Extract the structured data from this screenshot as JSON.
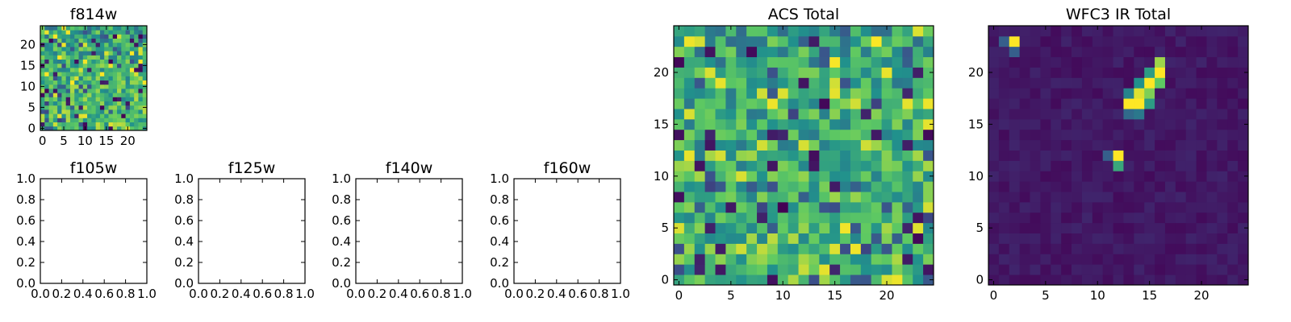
{
  "figure": {
    "background": "#ffffff"
  },
  "colormap": [
    "#440154",
    "#3b528b",
    "#21918c",
    "#5ec962",
    "#fde725"
  ],
  "chart_data": [
    {
      "id": "f814w",
      "type": "heatmap",
      "title": "f814w",
      "data_seed": 11,
      "pattern": "noise_bright_bottom",
      "grid_size": 25,
      "xlim": [
        -0.5,
        24.5
      ],
      "ylim": [
        -0.5,
        24.5
      ],
      "xticks": [
        0,
        5,
        10,
        15,
        20
      ],
      "yticks": [
        0,
        5,
        10,
        15,
        20
      ]
    },
    {
      "id": "f105w",
      "type": "empty",
      "title": "f105w",
      "xticks": [
        "0.0",
        "0.2",
        "0.4",
        "0.6",
        "0.8",
        "1.0"
      ],
      "yticks": [
        "0.0",
        "0.2",
        "0.4",
        "0.6",
        "0.8",
        "1.0"
      ]
    },
    {
      "id": "f125w",
      "type": "empty",
      "title": "f125w",
      "xticks": [
        "0.0",
        "0.2",
        "0.4",
        "0.6",
        "0.8",
        "1.0"
      ],
      "yticks": [
        "0.0",
        "0.2",
        "0.4",
        "0.6",
        "0.8",
        "1.0"
      ]
    },
    {
      "id": "f140w",
      "type": "empty",
      "title": "f140w",
      "xticks": [
        "0.0",
        "0.2",
        "0.4",
        "0.6",
        "0.8",
        "1.0"
      ],
      "yticks": [
        "0.0",
        "0.2",
        "0.4",
        "0.6",
        "0.8",
        "1.0"
      ]
    },
    {
      "id": "f160w",
      "type": "empty",
      "title": "f160w",
      "xticks": [
        "0.0",
        "0.2",
        "0.4",
        "0.6",
        "0.8",
        "1.0"
      ],
      "yticks": [
        "0.0",
        "0.2",
        "0.4",
        "0.6",
        "0.8",
        "1.0"
      ]
    },
    {
      "id": "acs-total",
      "type": "heatmap",
      "title": "ACS Total",
      "data_seed": 23,
      "pattern": "noise_bright_bottom",
      "grid_size": 25,
      "xlim": [
        -0.5,
        24.5
      ],
      "ylim": [
        -0.5,
        24.5
      ],
      "xticks": [
        0,
        5,
        10,
        15,
        20
      ],
      "yticks": [
        0,
        5,
        10,
        15,
        20
      ]
    },
    {
      "id": "wfc3-ir-total",
      "type": "heatmap",
      "title": "WFC3 IR Total",
      "data_seed": 37,
      "pattern": "dark_with_sources",
      "grid_size": 25,
      "bright_pixels": [
        {
          "x": 2,
          "y": 23,
          "v": 1.0
        },
        {
          "x": 1,
          "y": 23,
          "v": 0.3
        },
        {
          "x": 2,
          "y": 22,
          "v": 0.3
        },
        {
          "x": 16,
          "y": 21,
          "v": 0.85
        },
        {
          "x": 16,
          "y": 20,
          "v": 1.0
        },
        {
          "x": 15,
          "y": 20,
          "v": 0.55
        },
        {
          "x": 15,
          "y": 19,
          "v": 1.0
        },
        {
          "x": 16,
          "y": 19,
          "v": 0.75
        },
        {
          "x": 14,
          "y": 19,
          "v": 0.5
        },
        {
          "x": 14,
          "y": 18,
          "v": 0.95
        },
        {
          "x": 15,
          "y": 18,
          "v": 0.8
        },
        {
          "x": 13,
          "y": 18,
          "v": 0.45
        },
        {
          "x": 13,
          "y": 17,
          "v": 1.0
        },
        {
          "x": 14,
          "y": 17,
          "v": 1.0
        },
        {
          "x": 15,
          "y": 17,
          "v": 0.55
        },
        {
          "x": 13,
          "y": 16,
          "v": 0.35
        },
        {
          "x": 14,
          "y": 16,
          "v": 0.4
        },
        {
          "x": 12,
          "y": 12,
          "v": 1.0
        },
        {
          "x": 12,
          "y": 11,
          "v": 0.6
        },
        {
          "x": 11,
          "y": 12,
          "v": 0.3
        }
      ],
      "xlim": [
        -0.5,
        24.5
      ],
      "ylim": [
        -0.5,
        24.5
      ],
      "xticks": [
        0,
        5,
        10,
        15,
        20
      ],
      "yticks": [
        0,
        5,
        10,
        15,
        20
      ]
    }
  ]
}
